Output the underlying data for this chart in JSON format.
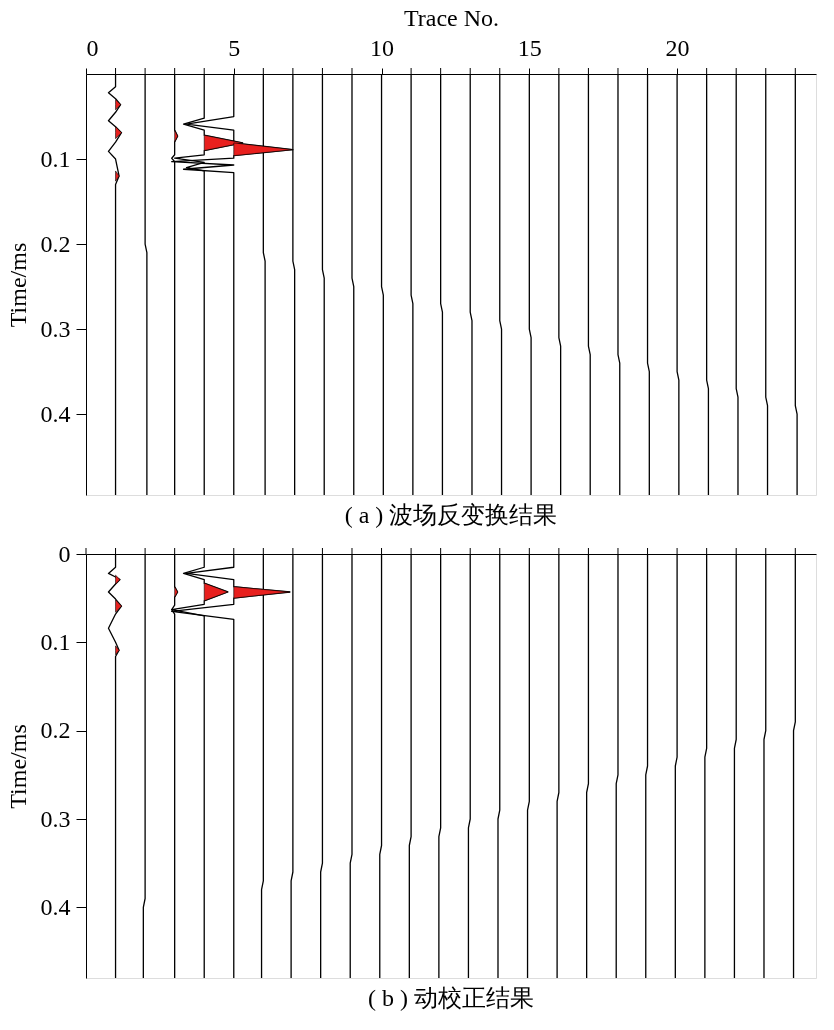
{
  "chart_data": [
    {
      "type": "line",
      "title": "( a ) 波场反变换结果",
      "xlabel": "Trace No.",
      "ylabel": "Time/ms",
      "xlim": [
        0,
        24.7
      ],
      "xticks": [
        0,
        {
          "value": 1,
          "label": null
        },
        {
          "value": 2,
          "label": null
        },
        {
          "value": 3,
          "label": null
        },
        {
          "value": 4,
          "label": null
        },
        5,
        {
          "value": 6,
          "label": null
        },
        {
          "value": 7,
          "label": null
        },
        {
          "value": 8,
          "label": null
        },
        {
          "value": 9,
          "label": null
        },
        10,
        {
          "value": 11,
          "label": null
        },
        {
          "value": 12,
          "label": null
        },
        {
          "value": 13,
          "label": null
        },
        {
          "value": 14,
          "label": null
        },
        15,
        {
          "value": 16,
          "label": null
        },
        {
          "value": 17,
          "label": null
        },
        {
          "value": 18,
          "label": null
        },
        {
          "value": 19,
          "label": null
        },
        20,
        {
          "value": 21,
          "label": null
        },
        {
          "value": 22,
          "label": null
        },
        {
          "value": 23,
          "label": null
        },
        {
          "value": 24,
          "label": null
        }
      ],
      "ylim": [
        0.495,
        0
      ],
      "yticks": [
        0.1,
        0.2,
        0.3,
        0.4
      ],
      "series": [
        {
          "color": "#000000",
          "x": [
            1,
            1,
            0.76,
            1,
            1.17,
            1,
            0.76,
            1,
            1.2,
            1,
            0.76,
            1,
            1.12,
            1,
            1
          ],
          "values": [
            0,
            0.015,
            0.022,
            0.029,
            0.036,
            0.045,
            0.055,
            0.062,
            0.069,
            0.08,
            0.091,
            0.1,
            0.12,
            0.13,
            0.495
          ]
        },
        {
          "color": "#000000",
          "x": [
            2,
            2,
            2.06,
            2.06
          ],
          "values": [
            0,
            0.2,
            0.21,
            0.495
          ]
        },
        {
          "color": "#000000",
          "x": [
            3,
            3,
            3.1,
            3,
            3,
            2.9,
            3,
            3
          ],
          "values": [
            0,
            0.066,
            0.073,
            0.08,
            0.095,
            0.099,
            0.103,
            0.495
          ]
        },
        {
          "color": "#000000",
          "x": [
            4,
            4,
            3.3,
            4,
            4,
            5.3,
            4,
            4,
            3.0,
            4,
            3.4,
            4,
            4
          ],
          "values": [
            0,
            0.052,
            0.059,
            0.066,
            0.072,
            0.081,
            0.09,
            0.095,
            0.099,
            0.104,
            0.11,
            0.114,
            0.495
          ]
        },
        {
          "color": "#000000",
          "x": [
            5,
            5,
            3.4,
            5,
            5,
            7.0,
            5,
            5,
            2.9,
            5,
            3.3,
            5,
            5
          ],
          "values": [
            0,
            0.05,
            0.059,
            0.066,
            0.081,
            0.089,
            0.096,
            0.099,
            0.103,
            0.107,
            0.112,
            0.116,
            0.495
          ]
        },
        {
          "color": "#000000",
          "x": [
            6,
            6,
            6.06,
            6.06
          ],
          "values": [
            0,
            0.21,
            0.22,
            0.495
          ]
        },
        {
          "color": "#000000",
          "x": [
            7,
            7,
            7.06,
            7.06
          ],
          "values": [
            0,
            0.22,
            0.23,
            0.495
          ]
        },
        {
          "color": "#000000",
          "x": [
            8,
            8,
            8.06,
            8.06
          ],
          "values": [
            0,
            0.23,
            0.24,
            0.495
          ]
        },
        {
          "color": "#000000",
          "x": [
            9,
            9,
            9.06,
            9.06
          ],
          "values": [
            0,
            0.24,
            0.25,
            0.495
          ]
        },
        {
          "color": "#000000",
          "x": [
            10,
            10,
            10.06,
            10.06
          ],
          "values": [
            0,
            0.25,
            0.26,
            0.495
          ]
        },
        {
          "color": "#000000",
          "x": [
            11,
            11,
            11.06,
            11.06
          ],
          "values": [
            0,
            0.26,
            0.27,
            0.495
          ]
        },
        {
          "color": "#000000",
          "x": [
            12,
            12,
            12.06,
            12.06
          ],
          "values": [
            0,
            0.27,
            0.28,
            0.495
          ]
        },
        {
          "color": "#000000",
          "x": [
            13,
            13,
            13.06,
            13.06
          ],
          "values": [
            0,
            0.28,
            0.29,
            0.495
          ]
        },
        {
          "color": "#000000",
          "x": [
            14,
            14,
            14.06,
            14.06
          ],
          "values": [
            0,
            0.29,
            0.3,
            0.495
          ]
        },
        {
          "color": "#000000",
          "x": [
            15,
            15,
            15.06,
            15.06
          ],
          "values": [
            0,
            0.3,
            0.31,
            0.495
          ]
        },
        {
          "color": "#000000",
          "x": [
            16,
            16,
            16.06,
            16.06
          ],
          "values": [
            0,
            0.31,
            0.32,
            0.495
          ]
        },
        {
          "color": "#000000",
          "x": [
            17,
            17,
            17.06,
            17.06
          ],
          "values": [
            0,
            0.32,
            0.33,
            0.495
          ]
        },
        {
          "color": "#000000",
          "x": [
            18,
            18,
            18.06,
            18.06
          ],
          "values": [
            0,
            0.33,
            0.34,
            0.495
          ]
        },
        {
          "color": "#000000",
          "x": [
            19,
            19,
            19.06,
            19.06
          ],
          "values": [
            0,
            0.34,
            0.35,
            0.495
          ]
        },
        {
          "color": "#000000",
          "x": [
            20,
            20,
            20.06,
            20.06
          ],
          "values": [
            0,
            0.35,
            0.36,
            0.495
          ]
        },
        {
          "color": "#000000",
          "x": [
            21,
            21,
            21.06,
            21.06
          ],
          "values": [
            0,
            0.36,
            0.37,
            0.495
          ]
        },
        {
          "color": "#000000",
          "x": [
            22,
            22,
            22.06,
            22.06
          ],
          "values": [
            0,
            0.37,
            0.38,
            0.495
          ]
        },
        {
          "color": "#000000",
          "x": [
            23,
            23,
            23.06,
            23.06
          ],
          "values": [
            0,
            0.38,
            0.39,
            0.495
          ]
        },
        {
          "color": "#000000",
          "x": [
            24,
            24,
            24.06,
            24.06
          ],
          "values": [
            0,
            0.39,
            0.4,
            0.495
          ]
        },
        {
          "type": "area",
          "color": "#e8201e",
          "x": [
            1,
            1.17,
            1
          ],
          "values": [
            0.03,
            0.036,
            0.042
          ]
        },
        {
          "type": "area",
          "color": "#e8201e",
          "x": [
            1,
            1.2,
            1
          ],
          "values": [
            0.062,
            0.069,
            0.076
          ]
        },
        {
          "type": "area",
          "color": "#e8201e",
          "x": [
            1,
            1.12,
            1
          ],
          "values": [
            0.114,
            0.12,
            0.126
          ]
        },
        {
          "type": "area",
          "color": "#e8201e",
          "x": [
            3,
            3.1,
            3
          ],
          "values": [
            0.066,
            0.073,
            0.08
          ]
        },
        {
          "type": "area",
          "color": "#e8201e",
          "x": [
            4,
            5.3,
            4
          ],
          "values": [
            0.072,
            0.081,
            0.09
          ]
        },
        {
          "type": "area",
          "color": "#e8201e",
          "x": [
            5,
            7.0,
            5
          ],
          "values": [
            0.081,
            0.089,
            0.096
          ]
        }
      ]
    },
    {
      "type": "line",
      "title": "( b ) 动校正结果",
      "ylabel": "Time/ms",
      "tick_labels": "y",
      "xlim": [
        0,
        24.7
      ],
      "xticks": [
        0,
        1,
        2,
        3,
        4,
        5,
        6,
        7,
        8,
        9,
        10,
        11,
        12,
        13,
        14,
        15,
        16,
        17,
        18,
        19,
        20,
        21,
        22,
        23,
        24
      ],
      "ylim": [
        0.48,
        0
      ],
      "yticks": [
        0,
        0.1,
        0.2,
        0.3,
        0.4
      ],
      "series": [
        {
          "color": "#000000",
          "x": [
            1,
            1,
            0.76,
            1,
            1.15,
            1,
            0.76,
            1,
            1.2,
            1,
            0.76,
            1,
            1.12,
            1,
            1
          ],
          "values": [
            0,
            0.015,
            0.022,
            0.026,
            0.029,
            0.034,
            0.043,
            0.051,
            0.059,
            0.068,
            0.084,
            0.1,
            0.109,
            0.116,
            0.48
          ]
        },
        {
          "color": "#000000",
          "x": [
            2,
            2,
            1.94,
            1.94
          ],
          "values": [
            0,
            0.39,
            0.4,
            0.48
          ]
        },
        {
          "color": "#000000",
          "x": [
            3,
            3,
            3.1,
            3,
            3,
            2.9,
            3,
            3
          ],
          "values": [
            0,
            0.037,
            0.043,
            0.049,
            0.058,
            0.063,
            0.068,
            0.48
          ]
        },
        {
          "color": "#000000",
          "x": [
            4,
            4,
            3.3,
            4,
            4,
            4.8,
            4,
            4,
            2.9,
            4,
            4
          ],
          "values": [
            0,
            0.015,
            0.022,
            0.029,
            0.033,
            0.043,
            0.053,
            0.057,
            0.063,
            0.07,
            0.48
          ]
        },
        {
          "color": "#000000",
          "x": [
            5,
            5,
            3.4,
            5,
            5,
            6.9,
            5,
            5,
            2.9,
            5,
            5
          ],
          "values": [
            0,
            0.015,
            0.022,
            0.029,
            0.037,
            0.043,
            0.05,
            0.057,
            0.065,
            0.074,
            0.48
          ]
        },
        {
          "color": "#000000",
          "x": [
            6,
            6,
            5.94,
            5.94
          ],
          "values": [
            0,
            0.37,
            0.38,
            0.48
          ]
        },
        {
          "color": "#000000",
          "x": [
            7,
            7,
            6.94,
            6.94
          ],
          "values": [
            0,
            0.36,
            0.37,
            0.48
          ]
        },
        {
          "color": "#000000",
          "x": [
            8,
            8,
            7.94,
            7.94
          ],
          "values": [
            0,
            0.35,
            0.36,
            0.48
          ]
        },
        {
          "color": "#000000",
          "x": [
            9,
            9,
            8.94,
            8.94
          ],
          "values": [
            0,
            0.34,
            0.35,
            0.48
          ]
        },
        {
          "color": "#000000",
          "x": [
            10,
            10,
            9.94,
            9.94
          ],
          "values": [
            0,
            0.33,
            0.34,
            0.48
          ]
        },
        {
          "color": "#000000",
          "x": [
            11,
            11,
            10.94,
            10.94
          ],
          "values": [
            0,
            0.32,
            0.33,
            0.48
          ]
        },
        {
          "color": "#000000",
          "x": [
            12,
            12,
            11.94,
            11.94
          ],
          "values": [
            0,
            0.31,
            0.32,
            0.48
          ]
        },
        {
          "color": "#000000",
          "x": [
            13,
            13,
            12.94,
            12.94
          ],
          "values": [
            0,
            0.3,
            0.31,
            0.48
          ]
        },
        {
          "color": "#000000",
          "x": [
            14,
            14,
            13.94,
            13.94
          ],
          "values": [
            0,
            0.29,
            0.3,
            0.48
          ]
        },
        {
          "color": "#000000",
          "x": [
            15,
            15,
            14.94,
            14.94
          ],
          "values": [
            0,
            0.28,
            0.29,
            0.48
          ]
        },
        {
          "color": "#000000",
          "x": [
            16,
            16,
            15.94,
            15.94
          ],
          "values": [
            0,
            0.27,
            0.28,
            0.48
          ]
        },
        {
          "color": "#000000",
          "x": [
            17,
            17,
            16.94,
            16.94
          ],
          "values": [
            0,
            0.26,
            0.27,
            0.48
          ]
        },
        {
          "color": "#000000",
          "x": [
            18,
            18,
            17.94,
            17.94
          ],
          "values": [
            0,
            0.25,
            0.26,
            0.48
          ]
        },
        {
          "color": "#000000",
          "x": [
            19,
            19,
            18.94,
            18.94
          ],
          "values": [
            0,
            0.24,
            0.25,
            0.48
          ]
        },
        {
          "color": "#000000",
          "x": [
            20,
            20,
            19.94,
            19.94
          ],
          "values": [
            0,
            0.23,
            0.24,
            0.48
          ]
        },
        {
          "color": "#000000",
          "x": [
            21,
            21,
            20.94,
            20.94
          ],
          "values": [
            0,
            0.22,
            0.23,
            0.48
          ]
        },
        {
          "color": "#000000",
          "x": [
            22,
            22,
            21.94,
            21.94
          ],
          "values": [
            0,
            0.21,
            0.22,
            0.48
          ]
        },
        {
          "color": "#000000",
          "x": [
            23,
            23,
            22.94,
            22.94
          ],
          "values": [
            0,
            0.2,
            0.21,
            0.48
          ]
        },
        {
          "color": "#000000",
          "x": [
            24,
            24,
            23.94,
            23.94
          ],
          "values": [
            0,
            0.19,
            0.2,
            0.48
          ]
        },
        {
          "type": "area",
          "color": "#e8201e",
          "x": [
            1,
            1.15,
            1
          ],
          "values": [
            0.024,
            0.029,
            0.034
          ]
        },
        {
          "type": "area",
          "color": "#e8201e",
          "x": [
            1,
            1.2,
            1
          ],
          "values": [
            0.052,
            0.059,
            0.066
          ]
        },
        {
          "type": "area",
          "color": "#e8201e",
          "x": [
            1,
            1.12,
            1
          ],
          "values": [
            0.104,
            0.109,
            0.114
          ]
        },
        {
          "type": "area",
          "color": "#e8201e",
          "x": [
            3,
            3.1,
            3
          ],
          "values": [
            0.037,
            0.043,
            0.049
          ]
        },
        {
          "type": "area",
          "color": "#e8201e",
          "x": [
            4,
            4.8,
            4
          ],
          "values": [
            0.033,
            0.043,
            0.053
          ]
        },
        {
          "type": "area",
          "color": "#e8201e",
          "x": [
            5,
            6.9,
            5
          ],
          "values": [
            0.037,
            0.043,
            0.05
          ]
        }
      ]
    }
  ]
}
